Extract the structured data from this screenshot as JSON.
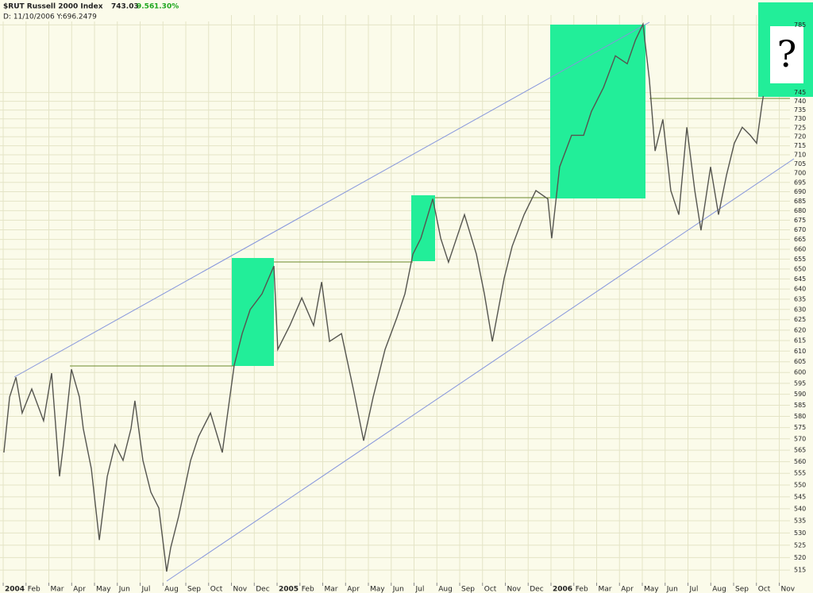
{
  "chart_data": {
    "type": "line",
    "title": "$RUT Russell 2000 Index",
    "last": "743.03",
    "change": "9.56",
    "change_pct": "1.30%",
    "subtitle": "D: 11/10/2006 Y:696.2479",
    "annotation": "?",
    "color": "#55554f",
    "log_scale": true,
    "grid": true,
    "xlim": [
      -0.14,
      34.47
    ],
    "ylim": [
      510,
      791
    ],
    "xticks": [
      {
        "value": 0,
        "label": "2004"
      },
      {
        "value": 1,
        "label": "Feb"
      },
      {
        "value": 2,
        "label": "Mar"
      },
      {
        "value": 3,
        "label": "Apr"
      },
      {
        "value": 4,
        "label": "May"
      },
      {
        "value": 5,
        "label": "Jun"
      },
      {
        "value": 6,
        "label": "Jul"
      },
      {
        "value": 7,
        "label": "Aug"
      },
      {
        "value": 8,
        "label": "Sep"
      },
      {
        "value": 9,
        "label": "Oct"
      },
      {
        "value": 10,
        "label": "Nov"
      },
      {
        "value": 11,
        "label": "Dec"
      },
      {
        "value": 12,
        "label": "2005"
      },
      {
        "value": 13,
        "label": "Feb"
      },
      {
        "value": 14,
        "label": "Mar"
      },
      {
        "value": 15,
        "label": "Apr"
      },
      {
        "value": 16,
        "label": "May"
      },
      {
        "value": 17,
        "label": "Jun"
      },
      {
        "value": 18,
        "label": "Jul"
      },
      {
        "value": 19,
        "label": "Aug"
      },
      {
        "value": 20,
        "label": "Sep"
      },
      {
        "value": 21,
        "label": "Oct"
      },
      {
        "value": 22,
        "label": "Nov"
      },
      {
        "value": 23,
        "label": "Dec"
      },
      {
        "value": 24,
        "label": "2006"
      },
      {
        "value": 25,
        "label": "Feb"
      },
      {
        "value": 26,
        "label": "Mar"
      },
      {
        "value": 27,
        "label": "Apr"
      },
      {
        "value": 28,
        "label": "May"
      },
      {
        "value": 29,
        "label": "Jun"
      },
      {
        "value": 30,
        "label": "Jul"
      },
      {
        "value": 31,
        "label": "Aug"
      },
      {
        "value": 32,
        "label": "Sep"
      },
      {
        "value": 33,
        "label": "Oct"
      },
      {
        "value": 34,
        "label": "Nov"
      }
    ],
    "yticks": [
      515,
      520,
      525,
      530,
      535,
      540,
      545,
      550,
      555,
      560,
      565,
      570,
      575,
      580,
      585,
      590,
      595,
      600,
      605,
      610,
      615,
      620,
      625,
      630,
      635,
      640,
      645,
      650,
      655,
      660,
      665,
      670,
      675,
      680,
      685,
      690,
      695,
      700,
      705,
      710,
      715,
      720,
      725,
      730,
      735,
      740,
      745,
      785
    ],
    "x": [
      0.03,
      0.28,
      0.56,
      0.83,
      1.25,
      1.77,
      2.12,
      2.47,
      2.64,
      2.99,
      3.34,
      3.51,
      3.86,
      4.21,
      4.56,
      4.9,
      5.25,
      5.6,
      5.77,
      6.12,
      6.47,
      6.82,
      7.16,
      7.34,
      7.69,
      8.21,
      8.56,
      9.08,
      9.6,
      10.12,
      10.47,
      10.82,
      11.34,
      11.86,
      12.03,
      12.56,
      13.08,
      13.6,
      13.95,
      14.3,
      14.82,
      15.34,
      15.79,
      16.21,
      16.73,
      17.25,
      17.6,
      17.95,
      18.3,
      18.82,
      19.17,
      19.51,
      19.86,
      20.21,
      20.73,
      21.08,
      21.43,
      21.95,
      22.3,
      22.82,
      23.34,
      23.86,
      24.03,
      24.38,
      24.9,
      25.43,
      25.77,
      26.3,
      26.82,
      27.34,
      27.7,
      28.03,
      28.31,
      28.56,
      28.9,
      29.25,
      29.6,
      29.95,
      30.3,
      30.57,
      30.99,
      31.34,
      31.69,
      32.03,
      32.38,
      32.73,
      33.01,
      33.25,
      33.3
    ],
    "values": [
      564,
      588.7,
      597.8,
      581.5,
      592.4,
      578,
      599.7,
      553.7,
      567.5,
      601.5,
      588.7,
      574.5,
      557.1,
      527.1,
      553.7,
      567.5,
      560.6,
      574.5,
      587,
      560.6,
      547,
      540.3,
      514.4,
      524,
      537,
      560.6,
      571,
      581.5,
      564,
      603.4,
      618.3,
      629.9,
      637.6,
      651.5,
      610.8,
      622.2,
      635.6,
      622.2,
      643.5,
      614.6,
      618.3,
      592.4,
      569.2,
      588.7,
      610.8,
      626,
      637.6,
      657.5,
      665.6,
      686.2,
      665.6,
      653.4,
      665.6,
      677.9,
      657.5,
      637.6,
      614.6,
      645.5,
      661.5,
      677.9,
      690.6,
      686.2,
      665.6,
      703.4,
      720.8,
      720.8,
      734.2,
      747.9,
      766.5,
      761.8,
      775.9,
      785.5,
      752.5,
      712.1,
      729.7,
      690.6,
      677.9,
      725.3,
      690.6,
      669.7,
      703.4,
      677.9,
      699,
      716.4,
      725.3,
      720.8,
      716.4,
      738.8,
      743
    ]
  }
}
